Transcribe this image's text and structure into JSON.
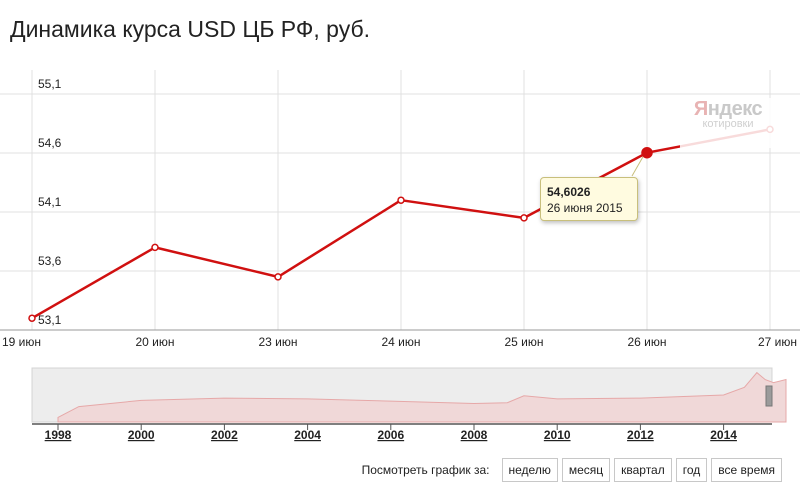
{
  "title": "Динамика курса USD ЦБ РФ, руб.",
  "watermark": {
    "brand": "ндекс",
    "brand_first": "Я",
    "sub": "котировки"
  },
  "tooltip": {
    "value": "54,6026",
    "date": "26 июня 2015"
  },
  "colors": {
    "line": "#d01010",
    "grid": "#e0e0e0",
    "nav_fill": "#f0d8d8",
    "nav_line": "#e6a8a8"
  },
  "range_selector": {
    "label": "Посмотреть график за:",
    "buttons": [
      "неделю",
      "месяц",
      "квартал",
      "год",
      "все время"
    ]
  },
  "chart_data": [
    {
      "type": "line",
      "title": "",
      "categories": [
        "19 июн",
        "20 июн",
        "23 июн",
        "24 июн",
        "25 июн",
        "26 июн",
        "27 июн"
      ],
      "series": [
        {
          "values": [
            53.2,
            53.8,
            53.55,
            54.2,
            54.05,
            54.6026,
            54.8
          ]
        }
      ],
      "y_ticks": [
        "55,1",
        "54,6",
        "54,1",
        "53,6",
        "53,1"
      ],
      "ylim": [
        53.1,
        55.1
      ],
      "grid": true,
      "highlighted_point": {
        "category": "26 июн",
        "value": 54.6026
      }
    },
    {
      "type": "area",
      "title": "",
      "x_ticks": [
        "1998",
        "2000",
        "2002",
        "2004",
        "2006",
        "2008",
        "2010",
        "2012",
        "2014"
      ],
      "x": [
        1998,
        1998.5,
        2000,
        2002,
        2004,
        2006,
        2008,
        2008.8,
        2009.2,
        2010,
        2012,
        2014,
        2014.5,
        2014.8,
        2015.0,
        2015.2,
        2015.5
      ],
      "values": [
        6,
        20,
        28,
        31,
        30,
        27,
        24,
        25,
        34,
        30,
        31,
        35,
        45,
        64,
        55,
        51,
        55
      ],
      "ylim": [
        0,
        70
      ]
    }
  ]
}
